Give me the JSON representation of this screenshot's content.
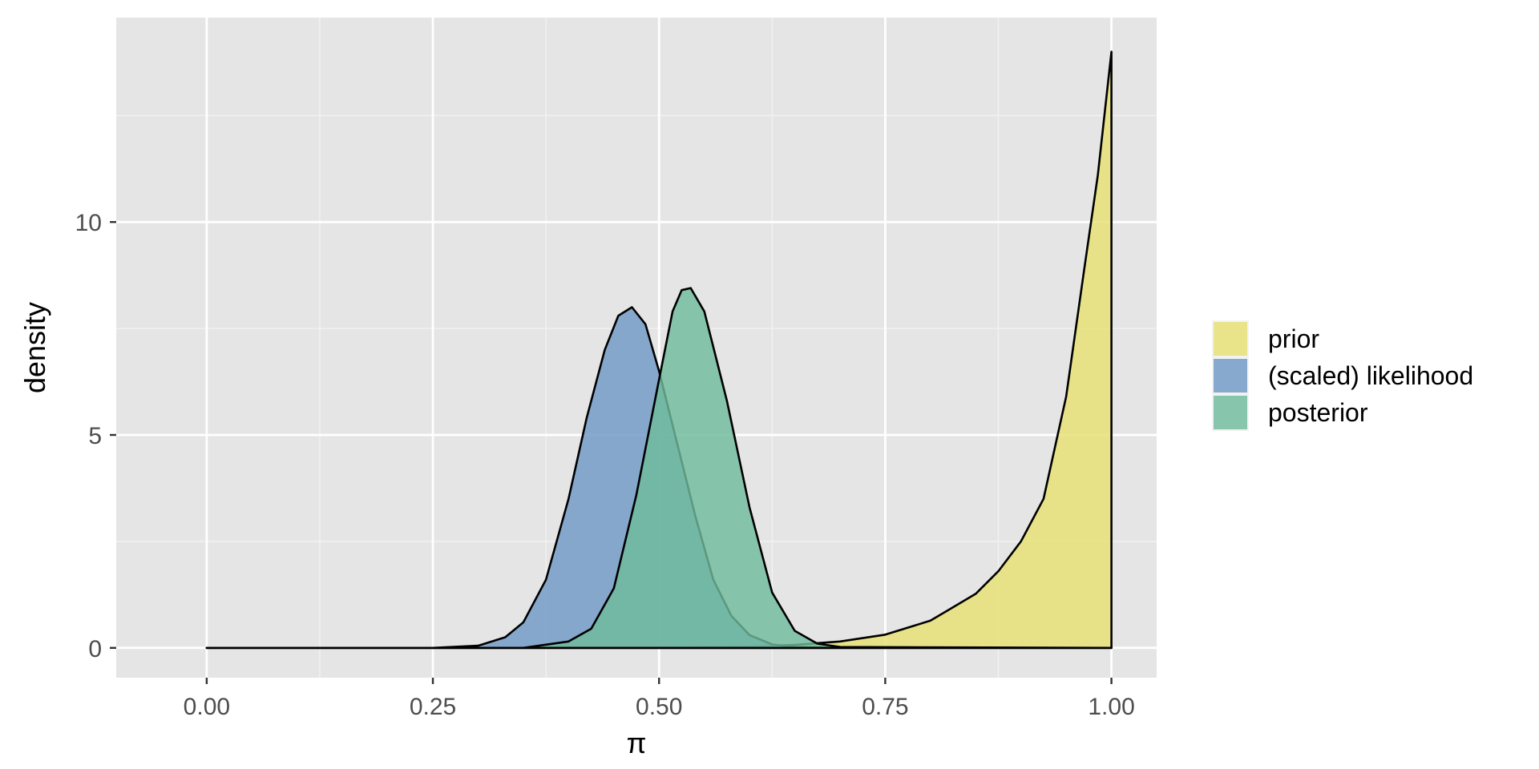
{
  "chart_data": {
    "type": "area",
    "xlabel": "π",
    "ylabel": "density",
    "xlim": [
      -0.1,
      1.05
    ],
    "ylim": [
      -0.7,
      14.8
    ],
    "x_ticks": [
      0.0,
      0.25,
      0.5,
      0.75,
      1.0
    ],
    "x_tick_labels": [
      "0.00",
      "0.25",
      "0.50",
      "0.75",
      "1.00"
    ],
    "y_ticks": [
      0,
      5,
      10
    ],
    "y_tick_labels": [
      "0",
      "5",
      "10"
    ],
    "grid": true,
    "legend_position": "right",
    "series": [
      {
        "name": "prior",
        "color": "#e6e072",
        "x": [
          0.0,
          0.3,
          0.5,
          0.6,
          0.65,
          0.7,
          0.75,
          0.8,
          0.85,
          0.875,
          0.9,
          0.925,
          0.95,
          0.97,
          0.985,
          1.0
        ],
        "values": [
          0.0,
          0.0,
          0.0,
          0.03,
          0.07,
          0.15,
          0.31,
          0.64,
          1.27,
          1.8,
          2.5,
          3.5,
          5.9,
          8.9,
          11.1,
          14.0
        ]
      },
      {
        "name": "(scaled) likelihood",
        "color": "#6f99c4",
        "x": [
          0.0,
          0.25,
          0.3,
          0.33,
          0.35,
          0.375,
          0.4,
          0.42,
          0.44,
          0.455,
          0.47,
          0.485,
          0.5,
          0.52,
          0.54,
          0.56,
          0.58,
          0.6,
          0.625,
          0.65,
          0.7,
          1.0
        ],
        "values": [
          0.0,
          0.0,
          0.05,
          0.25,
          0.6,
          1.6,
          3.5,
          5.4,
          7.0,
          7.8,
          8.0,
          7.6,
          6.5,
          4.8,
          3.1,
          1.6,
          0.75,
          0.3,
          0.08,
          0.02,
          0.0,
          0.0
        ]
      },
      {
        "name": "posterior",
        "color": "#6fbb9c",
        "x": [
          0.0,
          0.35,
          0.4,
          0.425,
          0.45,
          0.475,
          0.5,
          0.515,
          0.525,
          0.535,
          0.55,
          0.575,
          0.6,
          0.625,
          0.65,
          0.675,
          0.7,
          1.0
        ],
        "values": [
          0.0,
          0.0,
          0.15,
          0.45,
          1.4,
          3.6,
          6.3,
          7.9,
          8.4,
          8.45,
          7.9,
          5.8,
          3.3,
          1.3,
          0.4,
          0.1,
          0.02,
          0.0
        ]
      }
    ]
  }
}
